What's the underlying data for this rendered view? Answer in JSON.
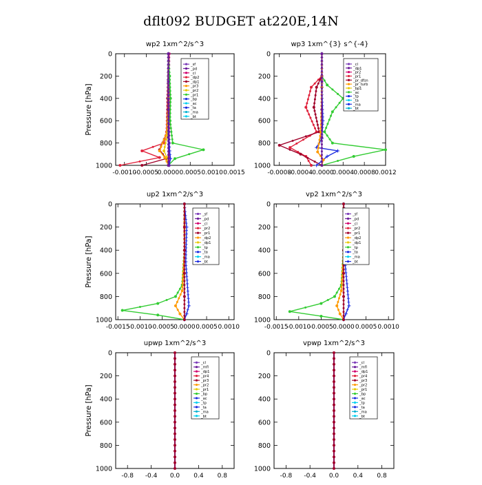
{
  "figure": {
    "title": "dflt092  BUDGET at220E,14N",
    "colors": {
      "sf": "#d0006f",
      "pd": "#6a1a9a",
      "cl": "#7a3ab8",
      "red": "#e0203a",
      "darkred": "#a0002a",
      "orange": "#ff9a00",
      "yellow": "#e8c800",
      "green": "#33cc33",
      "blue": "#1a2ae0",
      "cyan": "#00d0f0",
      "black": "#000000"
    }
  },
  "chart_data": [
    {
      "type": "line",
      "title": "wp2   1xm^2/s^3",
      "ylabel": "Pressure [hPa]",
      "ylim": [
        1000,
        0
      ],
      "yticks": [
        "0",
        "200",
        "400",
        "600",
        "800",
        "1000"
      ],
      "xlim": [
        -0.0012,
        0.0015
      ],
      "xticks": [
        "-0.0010",
        "-0.0005",
        "0.0000",
        "0.0005",
        "0.0010",
        "0.0015"
      ],
      "legend": [
        "_sf",
        "_pd",
        "_cl",
        "_dp2",
        "_dp1",
        "_pr3",
        "_pr2",
        "_pr1",
        "_bp",
        "_ac",
        "_ta",
        "_ma",
        "_bt"
      ],
      "series": [
        {
          "name": "_sf",
          "color": "#d0006f",
          "marker": "dot",
          "x": [
            2e-05,
            2e-05,
            2e-05,
            2e-05,
            2e-05,
            2e-05
          ],
          "p": [
            0,
            200,
            400,
            600,
            800,
            1000
          ]
        },
        {
          "name": "_pr1",
          "color": "#33cc33",
          "marker": "dot",
          "x": [
            0.0,
            3e-05,
            5e-05,
            4e-05,
            0.0001,
            0.0008,
            0.00015,
            0.0
          ],
          "p": [
            0,
            200,
            400,
            600,
            800,
            860,
            940,
            1000
          ]
        },
        {
          "name": "_dp2",
          "color": "#e0203a",
          "marker": "dot",
          "x": [
            0.0,
            -2e-05,
            -4e-05,
            -0.0001,
            -0.0006,
            -0.0002,
            -0.0011
          ],
          "p": [
            0,
            400,
            700,
            800,
            870,
            930,
            1000
          ]
        },
        {
          "name": "_dp1",
          "color": "#a0002a",
          "marker": "dot",
          "x": [
            0.0,
            -1e-05,
            -3e-05,
            -0.0002,
            -5e-05,
            -0.0006
          ],
          "p": [
            0,
            400,
            700,
            860,
            940,
            1000
          ]
        },
        {
          "name": "_pr2",
          "color": "#ff9a00",
          "marker": "dot",
          "x": [
            0.0,
            0.0,
            -3e-05,
            -0.0002,
            -8e-05,
            0.0
          ],
          "p": [
            0,
            400,
            700,
            870,
            930,
            1000
          ]
        },
        {
          "name": "_pr3",
          "color": "#e8c800",
          "marker": "dot",
          "x": [
            0.0,
            0.0,
            -1e-05,
            -0.0001,
            -3e-05,
            0.0
          ],
          "p": [
            0,
            400,
            700,
            870,
            930,
            1000
          ]
        },
        {
          "name": "_ac",
          "color": "#1a2ae0",
          "marker": "plus",
          "x": [
            0.0,
            0.0,
            1e-05,
            3e-05,
            5e-05,
            2e-05
          ],
          "p": [
            0,
            400,
            700,
            870,
            940,
            1000
          ]
        },
        {
          "name": "_pd",
          "color": "#6a1a9a",
          "marker": "dot",
          "x": [
            0.0,
            0.0,
            0.0,
            0.0,
            0.0
          ],
          "p": [
            0,
            250,
            500,
            750,
            1000
          ]
        }
      ]
    },
    {
      "type": "line",
      "title": "wp3   1xm^{3} s^{-4}",
      "ylabel": "",
      "ylim": [
        1000,
        0
      ],
      "yticks": [
        "0",
        "200",
        "400",
        "600",
        "800",
        "1000"
      ],
      "xlim": [
        -0.0009,
        0.0012
      ],
      "xticks": [
        "-0.0008",
        "-0.0004",
        "-0.0000",
        "0.0004",
        "0.0008",
        "0.0012"
      ],
      "legend": [
        "_cl",
        "_dp1",
        "_pr2",
        "_pr1",
        "_pr_dfsn",
        "_pr_turb",
        "_bp1",
        "_ac",
        "_tp",
        "_ta",
        "_ma",
        "_bt"
      ],
      "series": [
        {
          "name": "_ac",
          "color": "#33cc33",
          "marker": "dot",
          "x": [
            0.0,
            0.0,
            0.0001,
            0.0004,
            0.0002,
            5e-05,
            0.0002,
            0.0012,
            0.0006,
            0.0
          ],
          "p": [
            0,
            200,
            280,
            400,
            520,
            700,
            800,
            860,
            920,
            1000
          ]
        },
        {
          "name": "_dp1",
          "color": "#e0203a",
          "marker": "dot",
          "x": [
            0.0,
            0.0,
            -0.0002,
            -0.0003,
            -0.0001,
            -0.0006,
            -0.0003,
            -0.0002
          ],
          "p": [
            0,
            200,
            300,
            480,
            700,
            840,
            920,
            1000
          ]
        },
        {
          "name": "_pr2",
          "color": "#a0002a",
          "marker": "dot",
          "x": [
            0.0,
            0.0,
            -0.0001,
            -0.00015,
            -5e-05,
            -0.0008,
            -0.0004,
            0.0
          ],
          "p": [
            0,
            200,
            300,
            480,
            700,
            820,
            900,
            1000
          ]
        },
        {
          "name": "_tp",
          "color": "#1a2ae0",
          "marker": "plus",
          "x": [
            0.0,
            0.0,
            2e-05,
            0.0,
            -0.0001,
            0.0003,
            0.0001,
            -0.0001
          ],
          "p": [
            0,
            300,
            600,
            760,
            840,
            870,
            920,
            1000
          ]
        },
        {
          "name": "_pr1",
          "color": "#ff9a00",
          "marker": "dot",
          "x": [
            0.0,
            0.0,
            -2e-05,
            -8e-05,
            3e-05,
            0.0
          ],
          "p": [
            0,
            300,
            700,
            880,
            950,
            1000
          ]
        },
        {
          "name": "_cl",
          "color": "#6a1a9a",
          "marker": "dot",
          "x": [
            0.0,
            0.0,
            0.0,
            0.0,
            0.0
          ],
          "p": [
            0,
            250,
            500,
            750,
            1000
          ]
        }
      ]
    },
    {
      "type": "line",
      "title": "up2   1xm^2/s^3",
      "ylabel": "Pressure [hPa]",
      "ylim": [
        1000,
        0
      ],
      "yticks": [
        "0",
        "200",
        "400",
        "600",
        "800",
        "1000"
      ],
      "xlim": [
        -0.00155,
        0.00112
      ],
      "xticks": [
        "-0.0015",
        "-0.0010",
        "-0.0005",
        "0.0000",
        "0.0005",
        "0.0010"
      ],
      "legend": [
        "_sf",
        "_pd",
        "_cl",
        "_pr2",
        "_pr1",
        "_dp2",
        "_dp1",
        "_tp",
        "_ta",
        "_ma",
        "_bt"
      ],
      "series": [
        {
          "name": "_dp2",
          "color": "#33cc33",
          "marker": "dot",
          "x": [
            0.0,
            0.0,
            -5e-05,
            -0.0002,
            -0.0006,
            -0.0014,
            -0.0006,
            0.0
          ],
          "p": [
            0,
            400,
            700,
            800,
            860,
            920,
            960,
            1000
          ]
        },
        {
          "name": "_pr1",
          "color": "#ff9a00",
          "marker": "dot",
          "x": [
            0.0,
            0.0,
            -5e-05,
            -0.0002,
            -0.0001,
            0.0
          ],
          "p": [
            0,
            400,
            750,
            880,
            950,
            1000
          ]
        },
        {
          "name": "_tp",
          "color": "#1a2ae0",
          "marker": "plus",
          "x": [
            0.0,
            5e-05,
            3e-05,
            0.0001,
            5e-05,
            0.0
          ],
          "p": [
            0,
            200,
            500,
            880,
            950,
            1000
          ]
        },
        {
          "name": "_sf",
          "color": "#a0002a",
          "marker": "dot",
          "x": [
            0.0,
            0.0,
            0.0,
            0.0,
            0.0,
            0.0
          ],
          "p": [
            0,
            200,
            400,
            600,
            800,
            1000
          ]
        }
      ]
    },
    {
      "type": "line",
      "title": "vp2   1xm^2/s^3",
      "ylabel": "",
      "ylim": [
        1000,
        0
      ],
      "yticks": [
        "0",
        "200",
        "400",
        "600",
        "800",
        "1000"
      ],
      "xlim": [
        -0.00155,
        0.00112
      ],
      "xticks": [
        "-0.0015",
        "-0.0010",
        "-0.0005",
        "0.0000",
        "0.0005",
        "0.0010"
      ],
      "legend": [
        "_sf",
        "_pd",
        "_cl",
        "_pr2",
        "_pr1",
        "_dp2",
        "_dp1",
        "_tp",
        "_ta",
        "_ma",
        "_bt"
      ],
      "series": [
        {
          "name": "_dp2",
          "color": "#33cc33",
          "marker": "dot",
          "x": [
            0.0,
            0.0,
            -5e-05,
            -0.0002,
            -0.0005,
            -0.0012,
            -0.0005,
            0.0
          ],
          "p": [
            0,
            400,
            700,
            800,
            860,
            930,
            970,
            1000
          ]
        },
        {
          "name": "_pr1",
          "color": "#ff9a00",
          "marker": "dot",
          "x": [
            0.0,
            0.0,
            -5e-05,
            -0.00015,
            -8e-05,
            0.0
          ],
          "p": [
            0,
            400,
            750,
            880,
            950,
            1000
          ]
        },
        {
          "name": "_tp",
          "color": "#1a2ae0",
          "marker": "plus",
          "x": [
            0.0,
            4e-05,
            3e-05,
            0.00012,
            5e-05,
            0.0
          ],
          "p": [
            0,
            200,
            500,
            880,
            950,
            1000
          ]
        },
        {
          "name": "_sf",
          "color": "#a0002a",
          "marker": "dot",
          "x": [
            0.0,
            0.0,
            0.0,
            0.0,
            0.0,
            0.0
          ],
          "p": [
            0,
            200,
            400,
            600,
            800,
            1000
          ]
        }
      ]
    },
    {
      "type": "line",
      "title": "upwp   1xm^2/s^3",
      "ylabel": "Pressure [hPa]",
      "ylim": [
        1000,
        0
      ],
      "yticks": [
        "0",
        "200",
        "400",
        "600",
        "800",
        "1000"
      ],
      "xlim": [
        -1.0,
        1.0
      ],
      "xticks": [
        "-0.8",
        "-0.4",
        "0.0",
        "0.4",
        "0.8"
      ],
      "legend": [
        "_cl",
        "_mfl",
        "_dp1",
        "_pr4",
        "_pr3",
        "_pr2",
        "_pr1",
        "_bp",
        "_ac",
        "_tp",
        "_ta",
        "_ma",
        "_bt"
      ],
      "series": [
        {
          "name": "_mfl",
          "color": "#6a1a9a",
          "marker": "none",
          "x": [
            0.0,
            0.0
          ],
          "p": [
            0,
            1000
          ]
        },
        {
          "name": "_dp1",
          "color": "#a0002a",
          "marker": "dot",
          "x": [
            0,
            0,
            0,
            0,
            0,
            0,
            0,
            0,
            0,
            0,
            0,
            0,
            0,
            0,
            0,
            0,
            0,
            0,
            0,
            0,
            0
          ],
          "p": [
            0,
            50,
            100,
            150,
            200,
            250,
            300,
            350,
            400,
            450,
            500,
            550,
            600,
            650,
            700,
            750,
            800,
            850,
            900,
            950,
            1000
          ]
        }
      ]
    },
    {
      "type": "line",
      "title": "vpwp   1xm^2/s^3",
      "ylabel": "",
      "ylim": [
        1000,
        0
      ],
      "yticks": [
        "0",
        "200",
        "400",
        "600",
        "800",
        "1000"
      ],
      "xlim": [
        -1.0,
        1.0
      ],
      "xticks": [
        "-0.8",
        "-0.4",
        "0.0",
        "0.4",
        "0.8"
      ],
      "legend": [
        "_cl",
        "_mfl",
        "_dp1",
        "_pr4",
        "_pr3",
        "_pr2",
        "_pr1",
        "_bp",
        "_ac",
        "_tp",
        "_ta",
        "_ma",
        "_bt"
      ],
      "series": [
        {
          "name": "_mfl",
          "color": "#6a1a9a",
          "marker": "none",
          "x": [
            0.0,
            0.0
          ],
          "p": [
            0,
            1000
          ]
        },
        {
          "name": "_dp1",
          "color": "#a0002a",
          "marker": "dot",
          "x": [
            0,
            0,
            0,
            0,
            0,
            0,
            0,
            0,
            0,
            0,
            0,
            0,
            0,
            0,
            0,
            0,
            0,
            0,
            0,
            0,
            0
          ],
          "p": [
            0,
            50,
            100,
            150,
            200,
            250,
            300,
            350,
            400,
            450,
            500,
            550,
            600,
            650,
            700,
            750,
            800,
            850,
            900,
            950,
            1000
          ]
        }
      ]
    }
  ]
}
